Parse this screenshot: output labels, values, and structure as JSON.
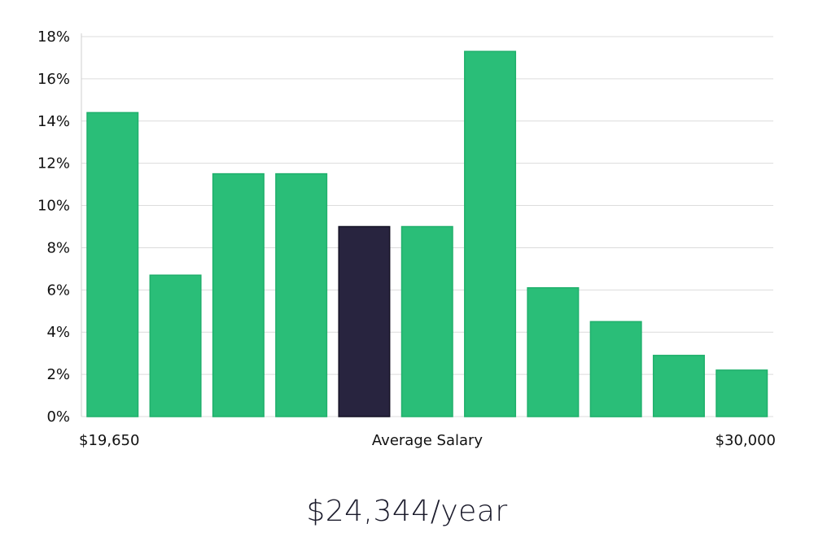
{
  "salary_text": "$24,344/year",
  "colors": {
    "bar": "#2abe78",
    "bar_edge": "#20b06c",
    "highlight": "#28243f",
    "highlight_edge": "#141225"
  },
  "chart_data": {
    "type": "bar",
    "title": "",
    "xlabel": "",
    "ylabel": "",
    "ylim": [
      0,
      18
    ],
    "y_ticks": [
      0,
      2,
      4,
      6,
      8,
      10,
      12,
      14,
      16,
      18
    ],
    "y_tick_suffix": "%",
    "grid": true,
    "legend": "none",
    "values": [
      14.4,
      6.7,
      11.5,
      11.5,
      9.0,
      9.0,
      17.3,
      6.1,
      4.5,
      2.9,
      2.2
    ],
    "highlight_index": 4,
    "x_labels": {
      "left": "$19,650",
      "center": "Average Salary",
      "right": "$30,000"
    }
  }
}
